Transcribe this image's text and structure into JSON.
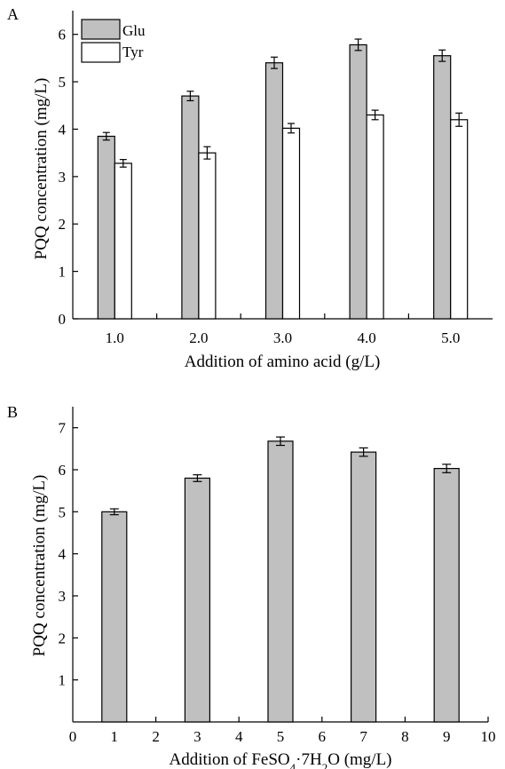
{
  "colors": {
    "filled": "#c0c0c0",
    "open": "#ffffff",
    "stroke": "#000000"
  },
  "chart_data": [
    {
      "panel": "A",
      "type": "bar",
      "title": "",
      "xlabel": "Addition of amino acid (g/L)",
      "ylabel": "PQQ concentration (mg/L)",
      "categories": [
        "1.0",
        "2.0",
        "3.0",
        "4.0",
        "5.0"
      ],
      "ylim": [
        0,
        6.5
      ],
      "yticks": [
        "0",
        "1",
        "2",
        "3",
        "4",
        "5",
        "6"
      ],
      "legend_position": "top-left",
      "series": [
        {
          "name": "Glu",
          "values": [
            3.85,
            4.7,
            5.4,
            5.78,
            5.55
          ],
          "errors": [
            0.08,
            0.1,
            0.12,
            0.12,
            0.12
          ]
        },
        {
          "name": "Tyr",
          "values": [
            3.28,
            3.5,
            4.02,
            4.3,
            4.2
          ],
          "errors": [
            0.08,
            0.13,
            0.1,
            0.1,
            0.14
          ]
        }
      ]
    },
    {
      "panel": "B",
      "type": "bar",
      "title": "",
      "xlabel_parts": {
        "pre": "Addition of FeSO",
        "sub1": "4",
        "mid": "·7H",
        "sub2": "2",
        "post": "O (mg/L)"
      },
      "ylabel": "PQQ concentration (mg/L)",
      "x": [
        1,
        3,
        5,
        7,
        9
      ],
      "xlim": [
        0,
        10
      ],
      "xticks": [
        "0",
        "1",
        "2",
        "3",
        "4",
        "5",
        "6",
        "7",
        "8",
        "9",
        "10"
      ],
      "ylim": [
        0,
        7.5
      ],
      "yticks": [
        "1",
        "2",
        "3",
        "4",
        "5",
        "6",
        "7"
      ],
      "values": [
        5.0,
        5.8,
        6.68,
        6.42,
        6.03
      ],
      "errors": [
        0.07,
        0.08,
        0.1,
        0.1,
        0.1
      ]
    }
  ]
}
